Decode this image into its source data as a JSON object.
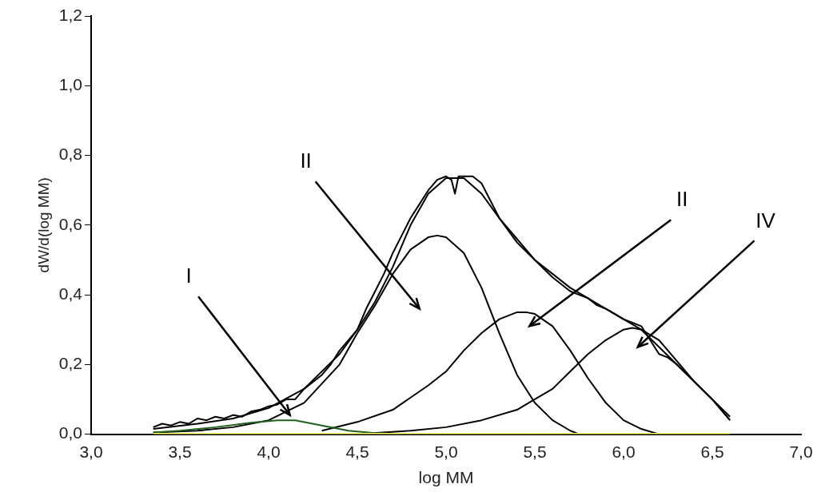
{
  "chart_data": {
    "type": "line",
    "xlabel": "log MM",
    "ylabel": "dW/d(log MM)",
    "xlim": [
      3,
      7
    ],
    "ylim": [
      0,
      1.2
    ],
    "xticks": [
      {
        "value": 3,
        "label": "3,0"
      },
      {
        "value": 3.5,
        "label": "3,5"
      },
      {
        "value": 4,
        "label": "4,0"
      },
      {
        "value": 4.5,
        "label": "4,5"
      },
      {
        "value": 5,
        "label": "5,0"
      },
      {
        "value": 5.5,
        "label": "5,5"
      },
      {
        "value": 6,
        "label": "6,0"
      },
      {
        "value": 6.5,
        "label": "6,5"
      },
      {
        "value": 7,
        "label": "7,0"
      }
    ],
    "yticks": [
      {
        "value": 0,
        "label": "0,0"
      },
      {
        "value": 0.2,
        "label": "0,2"
      },
      {
        "value": 0.4,
        "label": "0,4"
      },
      {
        "value": 0.6,
        "label": "0,6"
      },
      {
        "value": 0.8,
        "label": "0,8"
      },
      {
        "value": 1,
        "label": "1,0"
      },
      {
        "value": 1.2,
        "label": "1,2"
      }
    ],
    "grid": false,
    "legend": false,
    "marker": "none",
    "line_style": "solid",
    "series": [
      {
        "color": "#ffff66",
        "x": [
          3.35,
          6.6
        ],
        "values": [
          0,
          0
        ]
      },
      {
        "color": "#000000",
        "x": [
          3.35,
          3.4,
          3.45,
          3.5,
          3.55,
          3.6,
          3.65,
          3.7,
          3.75,
          3.8,
          3.85,
          3.9,
          3.95,
          4.0,
          4.05,
          4.1,
          4.15,
          4.2,
          4.25,
          4.3,
          4.35,
          4.4,
          4.45,
          4.5,
          4.55,
          4.6,
          4.65,
          4.7,
          4.75,
          4.8,
          4.85,
          4.9,
          4.95,
          5.0,
          5.03,
          5.05,
          5.07,
          5.15,
          5.2,
          5.25,
          5.3,
          5.35,
          5.4,
          5.5,
          5.6,
          5.7,
          5.75,
          5.8,
          5.85,
          5.9,
          6.0,
          6.05,
          6.1,
          6.15,
          6.2,
          6.25,
          6.3,
          6.4,
          6.5,
          6.6
        ],
        "values": [
          0.02,
          0.03,
          0.025,
          0.035,
          0.03,
          0.045,
          0.04,
          0.05,
          0.045,
          0.055,
          0.05,
          0.065,
          0.07,
          0.08,
          0.085,
          0.1,
          0.1,
          0.13,
          0.15,
          0.17,
          0.2,
          0.24,
          0.27,
          0.3,
          0.36,
          0.41,
          0.46,
          0.52,
          0.57,
          0.62,
          0.66,
          0.7,
          0.73,
          0.74,
          0.73,
          0.69,
          0.74,
          0.74,
          0.72,
          0.67,
          0.62,
          0.59,
          0.56,
          0.5,
          0.45,
          0.41,
          0.4,
          0.39,
          0.37,
          0.36,
          0.33,
          0.32,
          0.31,
          0.27,
          0.23,
          0.22,
          0.2,
          0.15,
          0.1,
          0.04
        ]
      },
      {
        "color": "#000000",
        "x": [
          3.35,
          3.6,
          3.8,
          4.0,
          4.2,
          4.4,
          4.5,
          4.6,
          4.7,
          4.8,
          4.9,
          5.0,
          5.1,
          5.2,
          5.3,
          5.4,
          5.5,
          5.6,
          5.7,
          5.8,
          5.9,
          6.0,
          6.1,
          6.2,
          6.3,
          6.4,
          6.5,
          6.6
        ],
        "values": [
          0.015,
          0.03,
          0.045,
          0.075,
          0.13,
          0.23,
          0.3,
          0.38,
          0.48,
          0.6,
          0.69,
          0.735,
          0.735,
          0.69,
          0.62,
          0.55,
          0.5,
          0.46,
          0.42,
          0.39,
          0.36,
          0.33,
          0.3,
          0.25,
          0.2,
          0.15,
          0.1,
          0.04
        ]
      },
      {
        "color": "#1f5f1f",
        "x": [
          3.35,
          3.5,
          3.7,
          3.9,
          4.05,
          4.15,
          4.3,
          4.45,
          4.6,
          4.75
        ],
        "values": [
          0.005,
          0.01,
          0.02,
          0.033,
          0.04,
          0.04,
          0.025,
          0.01,
          0.003,
          0
        ]
      },
      {
        "color": "#000000",
        "x": [
          3.35,
          3.6,
          3.8,
          4.0,
          4.2,
          4.4,
          4.5,
          4.6,
          4.7,
          4.8,
          4.9,
          4.95,
          5.0,
          5.1,
          5.2,
          5.3,
          5.4,
          5.5,
          5.6,
          5.7,
          5.75
        ],
        "values": [
          0.005,
          0.01,
          0.02,
          0.04,
          0.09,
          0.2,
          0.29,
          0.37,
          0.46,
          0.53,
          0.565,
          0.57,
          0.565,
          0.52,
          0.42,
          0.29,
          0.17,
          0.09,
          0.04,
          0.01,
          0
        ]
      },
      {
        "color": "#000000",
        "x": [
          4.3,
          4.5,
          4.7,
          4.9,
          5.0,
          5.1,
          5.2,
          5.3,
          5.4,
          5.45,
          5.5,
          5.6,
          5.7,
          5.8,
          5.9,
          6.0,
          6.1,
          6.2
        ],
        "values": [
          0.01,
          0.035,
          0.07,
          0.14,
          0.18,
          0.24,
          0.29,
          0.33,
          0.35,
          0.35,
          0.345,
          0.31,
          0.24,
          0.16,
          0.09,
          0.04,
          0.015,
          0
        ]
      },
      {
        "color": "#000000",
        "x": [
          4.5,
          4.8,
          5.0,
          5.2,
          5.4,
          5.5,
          5.6,
          5.7,
          5.8,
          5.9,
          6.0,
          6.05,
          6.1,
          6.2,
          6.3,
          6.4,
          6.5,
          6.6
        ],
        "values": [
          0,
          0.01,
          0.02,
          0.04,
          0.07,
          0.1,
          0.13,
          0.18,
          0.23,
          0.27,
          0.3,
          0.305,
          0.3,
          0.27,
          0.21,
          0.15,
          0.1,
          0.05
        ]
      }
    ],
    "annotations": [
      "I",
      "II",
      "II",
      "IV"
    ]
  }
}
